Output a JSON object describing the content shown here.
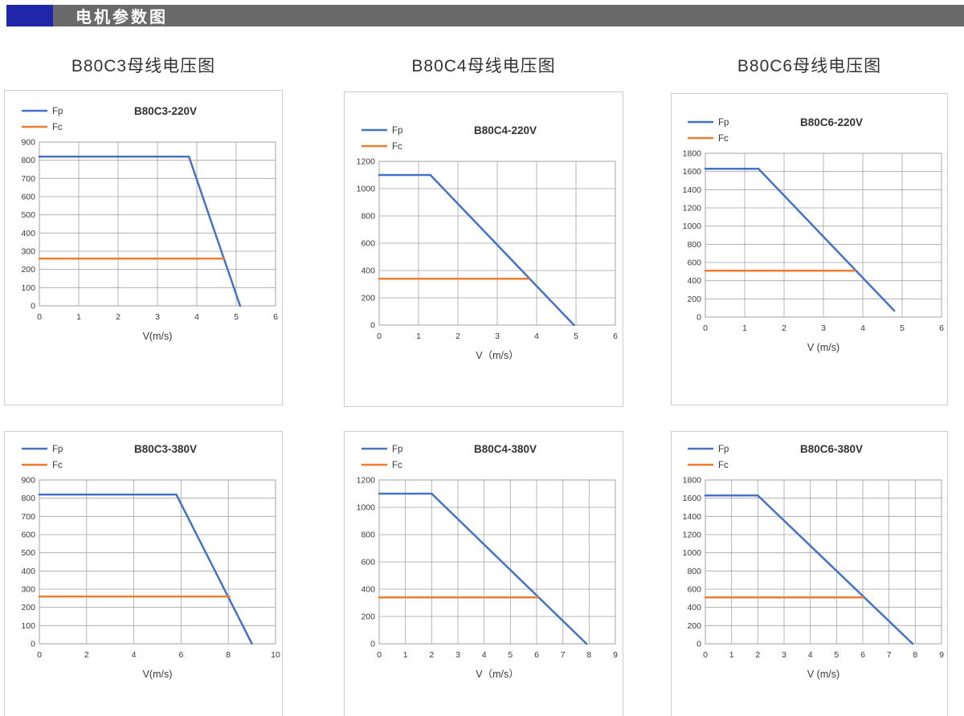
{
  "header": {
    "title": "电机参数图",
    "accent_color": "#2026A9",
    "bar_color": "#6A6A6A"
  },
  "columns": {
    "col1": "B80C3母线电压图",
    "col2": "B80C4母线电压图",
    "col3": "B80C6母线电压图"
  },
  "colors": {
    "fp_line": "#4472C4",
    "fc_line": "#ED7D31",
    "grid": "#A3A3A3",
    "tick_text": "#3A3A3A",
    "panel_border": "#CCCCCC"
  },
  "legend_labels": [
    "Fp",
    "Fc"
  ],
  "chart_data": [
    {
      "type": "line",
      "title": "B80C3-220V",
      "xlabel": "V(m/s)",
      "xlim": [
        0,
        6
      ],
      "xstep": 1,
      "ylim": [
        0,
        900
      ],
      "ystep": 100,
      "grid": true,
      "legend_position": "top-left",
      "series": [
        {
          "name": "Fp",
          "color": "#4472C4",
          "points": [
            [
              0,
              820
            ],
            [
              3.8,
              820
            ],
            [
              5.1,
              0
            ]
          ]
        },
        {
          "name": "Fc",
          "color": "#ED7D31",
          "points": [
            [
              0,
              260
            ],
            [
              4.7,
              260
            ]
          ]
        }
      ]
    },
    {
      "type": "line",
      "title": "B80C4-220V",
      "xlabel": "V（m/s）",
      "xlim": [
        0,
        6
      ],
      "xstep": 1,
      "ylim": [
        0,
        1200
      ],
      "ystep": 200,
      "grid": true,
      "legend_position": "top-left",
      "series": [
        {
          "name": "Fp",
          "color": "#4472C4",
          "points": [
            [
              0,
              1100
            ],
            [
              1.3,
              1100
            ],
            [
              4.95,
              0
            ]
          ]
        },
        {
          "name": "Fc",
          "color": "#ED7D31",
          "points": [
            [
              0,
              340
            ],
            [
              3.8,
              340
            ]
          ]
        }
      ]
    },
    {
      "type": "line",
      "title": "B80C6-220V",
      "xlabel": "V (m/s)",
      "xlim": [
        0,
        6
      ],
      "xstep": 1,
      "ylim": [
        0,
        1800
      ],
      "ystep": 200,
      "grid": true,
      "legend_position": "top-left",
      "series": [
        {
          "name": "Fp",
          "color": "#4472C4",
          "points": [
            [
              0,
              1630
            ],
            [
              1.35,
              1630
            ],
            [
              4.8,
              70
            ]
          ]
        },
        {
          "name": "Fc",
          "color": "#ED7D31",
          "points": [
            [
              0,
              510
            ],
            [
              3.8,
              510
            ]
          ]
        }
      ]
    },
    {
      "type": "line",
      "title": "B80C3-380V",
      "xlabel": "V(m/s)",
      "xlim": [
        0,
        10
      ],
      "xstep": 2,
      "ylim": [
        0,
        900
      ],
      "ystep": 100,
      "grid": true,
      "legend_position": "top-left",
      "series": [
        {
          "name": "Fp",
          "color": "#4472C4",
          "points": [
            [
              0,
              820
            ],
            [
              5.8,
              820
            ],
            [
              9.0,
              0
            ]
          ]
        },
        {
          "name": "Fc",
          "color": "#ED7D31",
          "points": [
            [
              0,
              260
            ],
            [
              8.05,
              260
            ]
          ]
        }
      ]
    },
    {
      "type": "line",
      "title": "B80C4-380V",
      "xlabel": "V（m/s）",
      "xlim": [
        0,
        9
      ],
      "xstep": 1,
      "ylim": [
        0,
        1200
      ],
      "ystep": 200,
      "grid": true,
      "legend_position": "top-left",
      "series": [
        {
          "name": "Fp",
          "color": "#4472C4",
          "points": [
            [
              0,
              1100
            ],
            [
              2,
              1100
            ],
            [
              7.9,
              0
            ]
          ]
        },
        {
          "name": "Fc",
          "color": "#ED7D31",
          "points": [
            [
              0,
              340
            ],
            [
              6.05,
              340
            ]
          ]
        }
      ]
    },
    {
      "type": "line",
      "title": "B80C6-380V",
      "xlabel": "V (m/s)",
      "xlim": [
        0,
        9
      ],
      "xstep": 1,
      "ylim": [
        0,
        1800
      ],
      "ystep": 200,
      "grid": true,
      "legend_position": "top-left",
      "series": [
        {
          "name": "Fp",
          "color": "#4472C4",
          "points": [
            [
              0,
              1630
            ],
            [
              2,
              1630
            ],
            [
              7.9,
              0
            ]
          ]
        },
        {
          "name": "Fc",
          "color": "#ED7D31",
          "points": [
            [
              0,
              510
            ],
            [
              6,
              510
            ]
          ]
        }
      ]
    }
  ]
}
